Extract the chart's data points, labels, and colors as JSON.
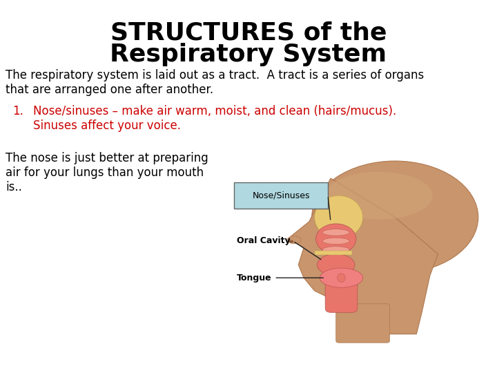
{
  "title_line1": "STRUCTURES of the",
  "title_line2": "Respiratory System",
  "title_fontsize": 26,
  "title_color": "#000000",
  "body_text1": "The respiratory system is laid out as a tract.  A tract is a series of organs\nthat are arranged one after another.",
  "body_text1_fontsize": 12,
  "body_text1_color": "#000000",
  "numbered_label": "1.",
  "numbered_text_line1": "Nose/sinuses – make air warm, moist, and clean (hairs/mucus).",
  "numbered_text_line2": "Sinuses affect your voice.",
  "numbered_fontsize": 12,
  "numbered_color": "#cc0000",
  "body_text2": "The nose is just better at preparing\nair for your lungs than your mouth\nis..",
  "body_text2_fontsize": 12,
  "body_text2_color": "#000000",
  "box_label": "Nose/Sinuses",
  "box_color": "#b0d8e0",
  "box_edge_color": "#666666",
  "annotation_oral_cavity": "Oral Cavity",
  "annotation_tongue": "Tongue",
  "annotation_color": "#000000",
  "annotation_fontsize": 9,
  "bg_color": "#ffffff",
  "skin_color": "#C8956C",
  "skin_dark": "#B07850",
  "skin_light": "#D4A87A",
  "nasal_color": "#E8756A",
  "nasal_inner": "#F0A090",
  "sinus_color": "#E8C870",
  "throat_color": "#E8756A"
}
